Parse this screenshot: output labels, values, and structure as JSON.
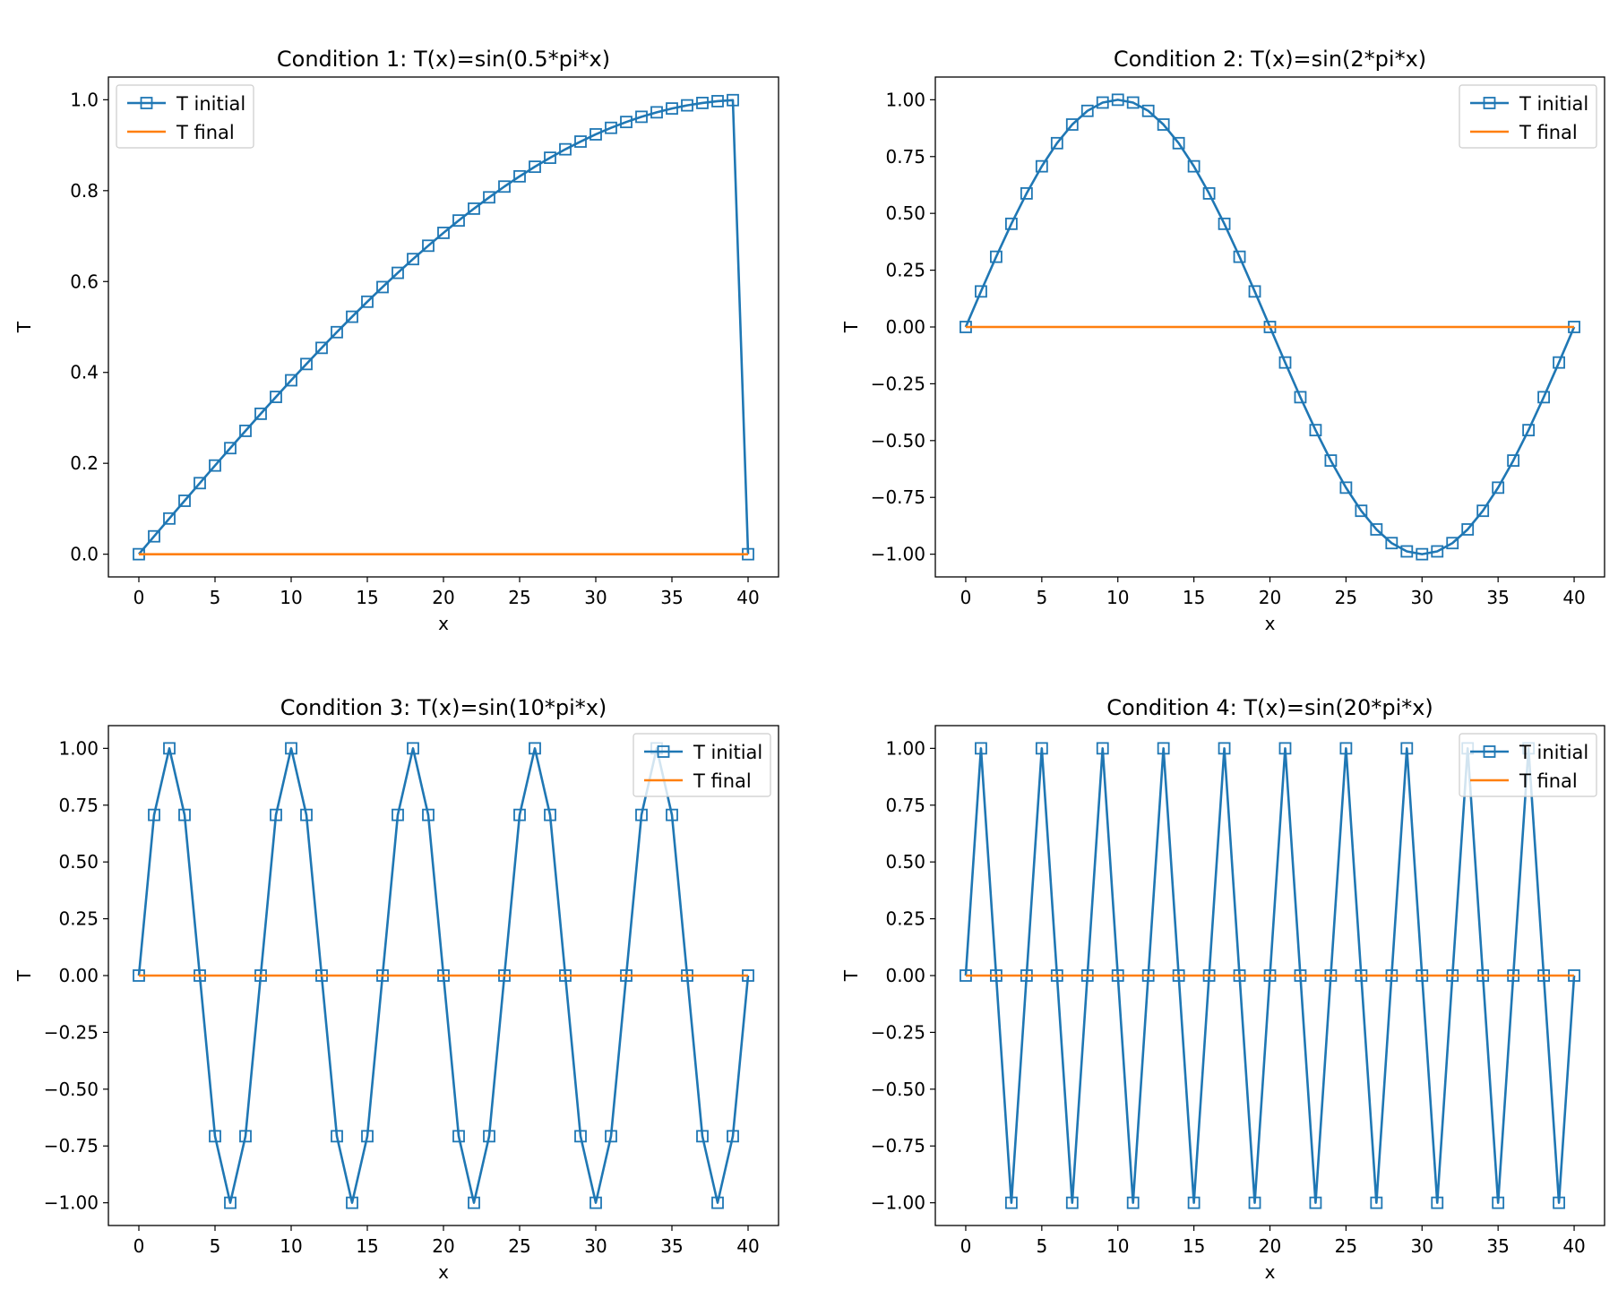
{
  "chart_data": [
    {
      "type": "line",
      "title": "Condition 1: T(x)=sin(0.5*pi*x)",
      "xlabel": "x",
      "ylabel": "T",
      "xlim": [
        -2,
        42
      ],
      "ylim": [
        -0.05,
        1.05
      ],
      "xticks": [
        0,
        5,
        10,
        15,
        20,
        25,
        30,
        35,
        40
      ],
      "xtick_labels": [
        "0",
        "5",
        "10",
        "15",
        "20",
        "25",
        "30",
        "35",
        "40"
      ],
      "yticks": [
        0,
        0.2,
        0.4,
        0.6,
        0.8,
        1.0
      ],
      "ytick_labels": [
        "0.0",
        "0.2",
        "0.4",
        "0.6",
        "0.8",
        "1.0"
      ],
      "legend_position": "upper-left",
      "series": [
        {
          "name": "T initial",
          "color": "#1f77b4",
          "marker": "square",
          "x": [
            0,
            1,
            2,
            3,
            4,
            5,
            6,
            7,
            8,
            9,
            10,
            11,
            12,
            13,
            14,
            15,
            16,
            17,
            18,
            19,
            20,
            21,
            22,
            23,
            24,
            25,
            26,
            27,
            28,
            29,
            30,
            31,
            32,
            33,
            34,
            35,
            36,
            37,
            38,
            39,
            40
          ],
          "y": [
            0,
            0.0393,
            0.0785,
            0.1175,
            0.1564,
            0.1951,
            0.2334,
            0.2714,
            0.309,
            0.3461,
            0.3827,
            0.4185,
            0.454,
            0.4886,
            0.5225,
            0.5556,
            0.5878,
            0.6191,
            0.6494,
            0.6788,
            0.7071,
            0.7343,
            0.7604,
            0.7853,
            0.809,
            0.8315,
            0.8526,
            0.8724,
            0.891,
            0.908,
            0.9239,
            0.9382,
            0.9511,
            0.9625,
            0.9724,
            0.9808,
            0.9877,
            0.993,
            0.9969,
            0.9992,
            0
          ]
        },
        {
          "name": "T final",
          "color": "#ff7f0e",
          "marker": "none",
          "x": [
            0,
            40
          ],
          "y": [
            0,
            0
          ]
        }
      ]
    },
    {
      "type": "line",
      "title": "Condition 2: T(x)=sin(2*pi*x)",
      "xlabel": "x",
      "ylabel": "T",
      "xlim": [
        -2,
        42
      ],
      "ylim": [
        -1.1,
        1.1
      ],
      "xticks": [
        0,
        5,
        10,
        15,
        20,
        25,
        30,
        35,
        40
      ],
      "xtick_labels": [
        "0",
        "5",
        "10",
        "15",
        "20",
        "25",
        "30",
        "35",
        "40"
      ],
      "yticks": [
        -1.0,
        -0.75,
        -0.5,
        -0.25,
        0,
        0.25,
        0.5,
        0.75,
        1.0
      ],
      "ytick_labels": [
        "−1.00",
        "−0.75",
        "−0.50",
        "−0.25",
        "0.00",
        "0.25",
        "0.50",
        "0.75",
        "1.00"
      ],
      "legend_position": "upper-right",
      "series": [
        {
          "name": "T initial",
          "color": "#1f77b4",
          "marker": "square",
          "x": [
            0,
            1,
            2,
            3,
            4,
            5,
            6,
            7,
            8,
            9,
            10,
            11,
            12,
            13,
            14,
            15,
            16,
            17,
            18,
            19,
            20,
            21,
            22,
            23,
            24,
            25,
            26,
            27,
            28,
            29,
            30,
            31,
            32,
            33,
            34,
            35,
            36,
            37,
            38,
            39,
            40
          ],
          "y": [
            0,
            0.1564,
            0.309,
            0.454,
            0.5878,
            0.7071,
            0.809,
            0.891,
            0.9511,
            0.9877,
            1,
            0.9877,
            0.9511,
            0.891,
            0.809,
            0.7071,
            0.5878,
            0.454,
            0.309,
            0.1564,
            0,
            -0.1564,
            -0.309,
            -0.454,
            -0.5878,
            -0.7071,
            -0.809,
            -0.891,
            -0.9511,
            -0.9877,
            -1,
            -0.9877,
            -0.9511,
            -0.891,
            -0.809,
            -0.7071,
            -0.5878,
            -0.454,
            -0.309,
            -0.1564,
            0
          ]
        },
        {
          "name": "T final",
          "color": "#ff7f0e",
          "marker": "none",
          "x": [
            0,
            40
          ],
          "y": [
            0,
            0
          ]
        }
      ]
    },
    {
      "type": "line",
      "title": "Condition 3: T(x)=sin(10*pi*x)",
      "xlabel": "x",
      "ylabel": "T",
      "xlim": [
        -2,
        42
      ],
      "ylim": [
        -1.1,
        1.1
      ],
      "xticks": [
        0,
        5,
        10,
        15,
        20,
        25,
        30,
        35,
        40
      ],
      "xtick_labels": [
        "0",
        "5",
        "10",
        "15",
        "20",
        "25",
        "30",
        "35",
        "40"
      ],
      "yticks": [
        -1.0,
        -0.75,
        -0.5,
        -0.25,
        0,
        0.25,
        0.5,
        0.75,
        1.0
      ],
      "ytick_labels": [
        "−1.00",
        "−0.75",
        "−0.50",
        "−0.25",
        "0.00",
        "0.25",
        "0.50",
        "0.75",
        "1.00"
      ],
      "legend_position": "upper-right",
      "series": [
        {
          "name": "T initial",
          "color": "#1f77b4",
          "marker": "square",
          "x": [
            0,
            1,
            2,
            3,
            4,
            5,
            6,
            7,
            8,
            9,
            10,
            11,
            12,
            13,
            14,
            15,
            16,
            17,
            18,
            19,
            20,
            21,
            22,
            23,
            24,
            25,
            26,
            27,
            28,
            29,
            30,
            31,
            32,
            33,
            34,
            35,
            36,
            37,
            38,
            39,
            40
          ],
          "y": [
            0,
            0.7071,
            1,
            0.7071,
            0,
            -0.7071,
            -1,
            -0.7071,
            0,
            0.7071,
            1,
            0.7071,
            0,
            -0.7071,
            -1,
            -0.7071,
            0,
            0.7071,
            1,
            0.7071,
            0,
            -0.7071,
            -1,
            -0.7071,
            0,
            0.7071,
            1,
            0.7071,
            0,
            -0.7071,
            -1,
            -0.7071,
            0,
            0.7071,
            1,
            0.7071,
            0,
            -0.7071,
            -1,
            -0.7071,
            0
          ]
        },
        {
          "name": "T final",
          "color": "#ff7f0e",
          "marker": "none",
          "x": [
            0,
            40
          ],
          "y": [
            0,
            0
          ]
        }
      ]
    },
    {
      "type": "line",
      "title": "Condition 4: T(x)=sin(20*pi*x)",
      "xlabel": "x",
      "ylabel": "T",
      "xlim": [
        -2,
        42
      ],
      "ylim": [
        -1.1,
        1.1
      ],
      "xticks": [
        0,
        5,
        10,
        15,
        20,
        25,
        30,
        35,
        40
      ],
      "xtick_labels": [
        "0",
        "5",
        "10",
        "15",
        "20",
        "25",
        "30",
        "35",
        "40"
      ],
      "yticks": [
        -1.0,
        -0.75,
        -0.5,
        -0.25,
        0,
        0.25,
        0.5,
        0.75,
        1.0
      ],
      "ytick_labels": [
        "−1.00",
        "−0.75",
        "−0.50",
        "−0.25",
        "0.00",
        "0.25",
        "0.50",
        "0.75",
        "1.00"
      ],
      "legend_position": "upper-right",
      "series": [
        {
          "name": "T initial",
          "color": "#1f77b4",
          "marker": "square",
          "x": [
            0,
            1,
            2,
            3,
            4,
            5,
            6,
            7,
            8,
            9,
            10,
            11,
            12,
            13,
            14,
            15,
            16,
            17,
            18,
            19,
            20,
            21,
            22,
            23,
            24,
            25,
            26,
            27,
            28,
            29,
            30,
            31,
            32,
            33,
            34,
            35,
            36,
            37,
            38,
            39,
            40
          ],
          "y": [
            0,
            1,
            0,
            -1,
            0,
            1,
            0,
            -1,
            0,
            1,
            0,
            -1,
            0,
            1,
            0,
            -1,
            0,
            1,
            0,
            -1,
            0,
            1,
            0,
            -1,
            0,
            1,
            0,
            -1,
            0,
            1,
            0,
            -1,
            0,
            1,
            0,
            -1,
            0,
            1,
            0,
            -1,
            0
          ]
        },
        {
          "name": "T final",
          "color": "#ff7f0e",
          "marker": "none",
          "x": [
            0,
            40
          ],
          "y": [
            0,
            0
          ]
        }
      ]
    }
  ]
}
